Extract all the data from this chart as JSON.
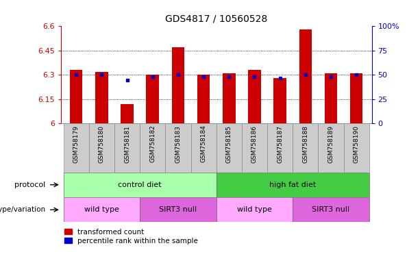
{
  "title": "GDS4817 / 10560528",
  "samples": [
    "GSM758179",
    "GSM758180",
    "GSM758181",
    "GSM758182",
    "GSM758183",
    "GSM758184",
    "GSM758185",
    "GSM758186",
    "GSM758187",
    "GSM758188",
    "GSM758189",
    "GSM758190"
  ],
  "red_values": [
    6.33,
    6.32,
    6.12,
    6.3,
    6.47,
    6.3,
    6.31,
    6.33,
    6.28,
    6.58,
    6.31,
    6.31
  ],
  "blue_values": [
    6.3,
    6.3,
    6.27,
    6.29,
    6.3,
    6.29,
    6.29,
    6.29,
    6.28,
    6.3,
    6.29,
    6.3
  ],
  "ylim_left": [
    6.0,
    6.6
  ],
  "ylim_right": [
    0,
    100
  ],
  "yticks_left": [
    6.0,
    6.15,
    6.3,
    6.45,
    6.6
  ],
  "yticks_right": [
    0,
    25,
    50,
    75,
    100
  ],
  "ytick_labels_left": [
    "6",
    "6.15",
    "6.3",
    "6.45",
    "6.6"
  ],
  "ytick_labels_right": [
    "0",
    "25",
    "50",
    "75",
    "100%"
  ],
  "red_color": "#cc0000",
  "blue_color": "#0000cc",
  "protocol_labels": [
    {
      "text": "control diet",
      "start": 0,
      "end": 5,
      "color": "#aaffaa"
    },
    {
      "text": "high fat diet",
      "start": 6,
      "end": 11,
      "color": "#44cc44"
    }
  ],
  "genotype_labels": [
    {
      "text": "wild type",
      "start": 0,
      "end": 2,
      "color": "#ffaaff"
    },
    {
      "text": "SIRT3 null",
      "start": 3,
      "end": 5,
      "color": "#dd66dd"
    },
    {
      "text": "wild type",
      "start": 6,
      "end": 8,
      "color": "#ffaaff"
    },
    {
      "text": "SIRT3 null",
      "start": 9,
      "end": 11,
      "color": "#dd66dd"
    }
  ],
  "protocol_row_label": "protocol",
  "genotype_row_label": "genotype/variation",
  "legend_red": "transformed count",
  "legend_blue": "percentile rank within the sample",
  "bar_width": 0.5,
  "tick_row_color": "#cccccc",
  "title_fontsize": 10,
  "axis_fontsize": 8,
  "label_fontsize": 8,
  "sample_fontsize": 6.5,
  "legend_fontsize": 7.5,
  "grid_ticks": [
    6.15,
    6.3,
    6.45
  ]
}
